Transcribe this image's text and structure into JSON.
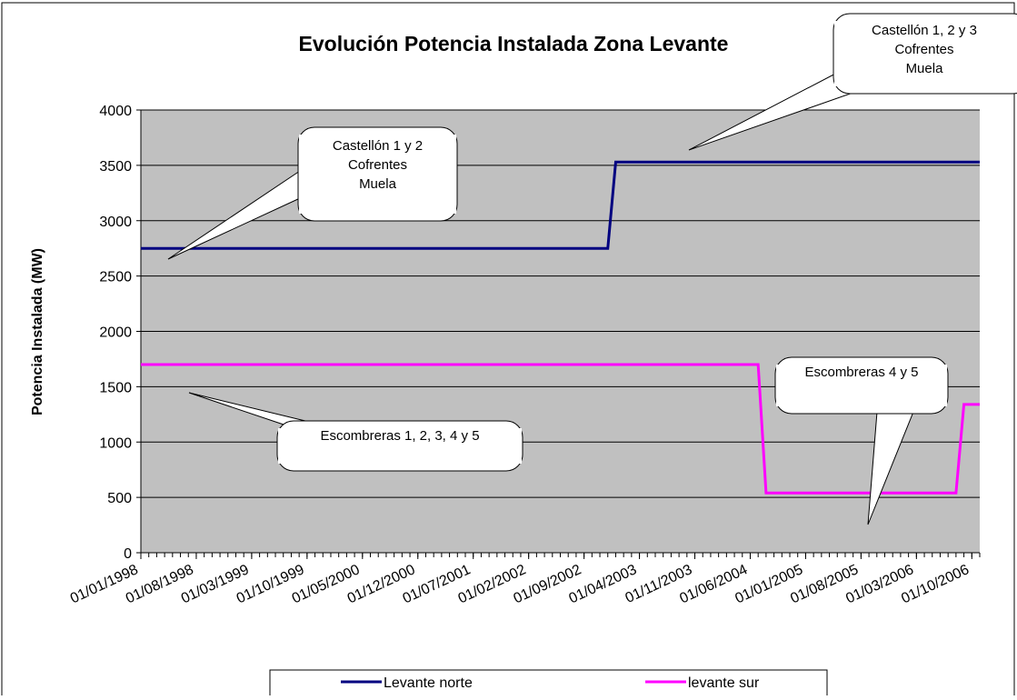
{
  "chart_data": {
    "type": "line",
    "title": "Evolución Potencia Instalada Zona Levante",
    "y_label": "Potencia Instalada (MW)",
    "xlim": [
      "01/01/1998",
      "01/11/2006"
    ],
    "xticks": [
      "01/01/1998",
      "01/08/1998",
      "01/03/1999",
      "01/10/1999",
      "01/05/2000",
      "01/12/2000",
      "01/07/2001",
      "01/02/2002",
      "01/09/2002",
      "01/04/2003",
      "01/11/2003",
      "01/06/2004",
      "01/01/2005",
      "01/08/2005",
      "01/03/2006",
      "01/10/2006"
    ],
    "ylim": [
      0,
      4000
    ],
    "yticks": [
      0,
      500,
      1000,
      1500,
      2000,
      2500,
      3000,
      3500,
      4000
    ],
    "grid": true,
    "legend": "bottom",
    "series": [
      {
        "name": "Levante norte",
        "color": "#000080",
        "x": [
          "01/01/1998",
          "01/12/2002",
          "01/01/2003",
          "01/11/2006"
        ],
        "values": [
          2750,
          2750,
          3530,
          3530
        ]
      },
      {
        "name": "levante sur",
        "color": "#ff00ff",
        "x": [
          "01/01/1998",
          "01/07/2004",
          "01/08/2004",
          "01/08/2006",
          "01/09/2006",
          "01/11/2006"
        ],
        "values": [
          1700,
          1700,
          540,
          540,
          1340,
          1340
        ]
      }
    ],
    "annotations": [
      {
        "lines": [
          "Castellón 1 y 2",
          "Cofrentes",
          "Muela"
        ]
      },
      {
        "lines": [
          "Castellón 1, 2 y 3",
          "Cofrentes",
          "Muela"
        ]
      },
      {
        "lines": [
          "Escombreras 1, 2, 3, 4 y 5"
        ]
      },
      {
        "lines": [
          "Escombreras 4 y 5"
        ]
      }
    ]
  }
}
